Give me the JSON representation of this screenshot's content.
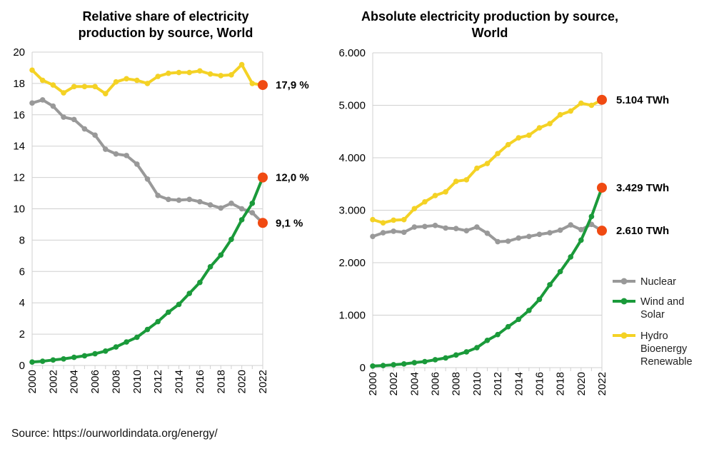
{
  "source": "Source: https://ourworldindata.org/energy/",
  "colors": {
    "nuclear": "#999999",
    "wind_solar": "#1a9a3a",
    "hydro": "#f4d225",
    "marker_last": "#f04a12",
    "grid": "#d0d0d0"
  },
  "legend": [
    {
      "series": "nuclear",
      "lines": [
        "Nuclear"
      ]
    },
    {
      "series": "wind_solar",
      "lines": [
        "Wind and",
        "Solar"
      ]
    },
    {
      "series": "hydro",
      "lines": [
        "Hydro",
        "Bioenergy",
        "Renewable"
      ]
    }
  ],
  "chart_data": [
    {
      "type": "line",
      "title": [
        "Relative share of electricity",
        "production by source, World"
      ],
      "xlabel": "",
      "ylabel": "",
      "x": [
        2000,
        2001,
        2002,
        2003,
        2004,
        2005,
        2006,
        2007,
        2008,
        2009,
        2010,
        2011,
        2012,
        2013,
        2014,
        2015,
        2016,
        2017,
        2018,
        2019,
        2020,
        2021,
        2022
      ],
      "xticks": [
        "2000",
        "2002",
        "2004",
        "2006",
        "2008",
        "2010",
        "2012",
        "2014",
        "2016",
        "2018",
        "2020",
        "2022"
      ],
      "ylim": [
        0,
        20
      ],
      "yticks": [
        "0",
        "2",
        "4",
        "6",
        "8",
        "10",
        "12",
        "14",
        "16",
        "18",
        "20"
      ],
      "grid": true,
      "series": [
        {
          "key": "hydro",
          "values": [
            18.85,
            18.2,
            17.9,
            17.4,
            17.8,
            17.8,
            17.8,
            17.35,
            18.1,
            18.3,
            18.2,
            18.0,
            18.45,
            18.65,
            18.7,
            18.7,
            18.8,
            18.6,
            18.5,
            18.55,
            19.2,
            18.0,
            17.9
          ],
          "end_label": "17,9 %"
        },
        {
          "key": "nuclear",
          "values": [
            16.75,
            16.95,
            16.55,
            15.85,
            15.7,
            15.1,
            14.7,
            13.8,
            13.5,
            13.4,
            12.85,
            11.9,
            10.85,
            10.6,
            10.55,
            10.6,
            10.45,
            10.25,
            10.05,
            10.35,
            10.0,
            9.75,
            9.1
          ],
          "end_label": "9,1 %"
        },
        {
          "key": "wind_solar",
          "values": [
            0.22,
            0.27,
            0.35,
            0.42,
            0.52,
            0.62,
            0.75,
            0.92,
            1.18,
            1.5,
            1.8,
            2.3,
            2.8,
            3.4,
            3.9,
            4.6,
            5.3,
            6.3,
            7.05,
            8.05,
            9.3,
            10.35,
            12.0
          ],
          "end_label": "12,0 %"
        }
      ]
    },
    {
      "type": "line",
      "title": [
        "Absolute electricity production by source,",
        "World"
      ],
      "xlabel": "",
      "ylabel": "",
      "x": [
        2000,
        2001,
        2002,
        2003,
        2004,
        2005,
        2006,
        2007,
        2008,
        2009,
        2010,
        2011,
        2012,
        2013,
        2014,
        2015,
        2016,
        2017,
        2018,
        2019,
        2020,
        2021,
        2022
      ],
      "xticks": [
        "2000",
        "2002",
        "2004",
        "2006",
        "2008",
        "2010",
        "2012",
        "2014",
        "2016",
        "2018",
        "2020",
        "2022"
      ],
      "ylim": [
        0,
        6000
      ],
      "yticks": [
        "0",
        "1.000",
        "2.000",
        "3.000",
        "4.000",
        "5.000",
        "6.000"
      ],
      "grid": true,
      "legend_position": "right",
      "series": [
        {
          "key": "hydro",
          "values": [
            2820,
            2760,
            2810,
            2820,
            3030,
            3160,
            3280,
            3350,
            3550,
            3580,
            3800,
            3890,
            4080,
            4250,
            4380,
            4430,
            4570,
            4650,
            4820,
            4890,
            5040,
            5000,
            5104
          ],
          "end_label": "5.104 TWh"
        },
        {
          "key": "nuclear",
          "values": [
            2500,
            2570,
            2600,
            2580,
            2680,
            2690,
            2710,
            2660,
            2650,
            2610,
            2680,
            2560,
            2400,
            2410,
            2470,
            2500,
            2540,
            2570,
            2620,
            2720,
            2630,
            2730,
            2610
          ],
          "end_label": "2.610 TWh"
        },
        {
          "key": "wind_solar",
          "values": [
            30,
            40,
            55,
            70,
            95,
            115,
            150,
            185,
            240,
            300,
            380,
            520,
            630,
            780,
            920,
            1090,
            1300,
            1580,
            1830,
            2110,
            2430,
            2880,
            3429
          ],
          "end_label": "3.429 TWh"
        }
      ]
    }
  ]
}
